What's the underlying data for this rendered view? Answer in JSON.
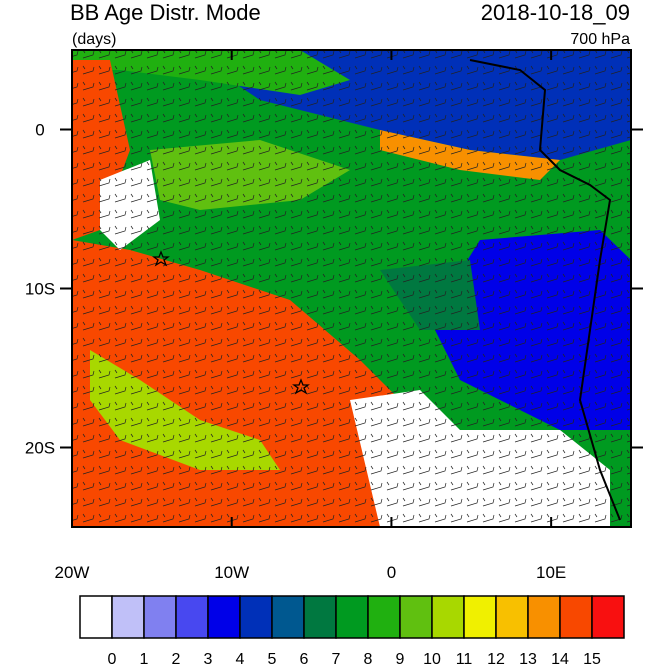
{
  "title": "BB Age Distr. Mode",
  "units": "(days)",
  "date": "2018-10-18_09",
  "level": "700 hPa",
  "map": {
    "xlim": [
      -20,
      15
    ],
    "ylim": [
      -25,
      5
    ],
    "xticks": [
      {
        "value": -20,
        "label": "20W"
      },
      {
        "value": -10,
        "label": "10W"
      },
      0,
      {
        "value": 10,
        "label": "10E"
      }
    ],
    "yticks": [
      0,
      {
        "value": -10,
        "label": "10S"
      },
      {
        "value": -20,
        "label": "20S"
      }
    ]
  },
  "colorbar": {
    "colors": [
      "#ffffff",
      "#c0c0f8",
      "#8080f0",
      "#4848f0",
      "#0000e8",
      "#0030b8",
      "#005890",
      "#007840",
      "#009a20",
      "#20b010",
      "#60c010",
      "#a8d800",
      "#f0f000",
      "#f8c000",
      "#f89000",
      "#f84800",
      "#f81010"
    ],
    "labels": [
      0,
      1,
      2,
      3,
      4,
      5,
      6,
      7,
      8,
      9,
      10,
      11,
      12,
      13,
      14,
      15
    ]
  }
}
